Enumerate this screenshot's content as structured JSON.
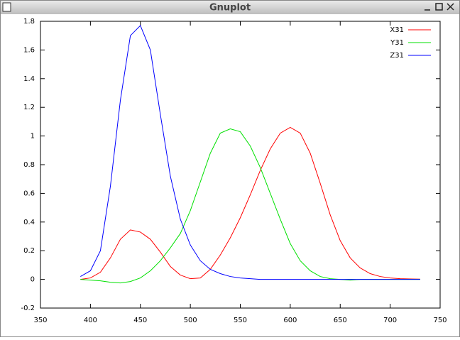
{
  "window": {
    "title": "Gnuplot"
  },
  "chart_data": {
    "type": "line",
    "x": [
      390,
      400,
      410,
      420,
      430,
      440,
      450,
      460,
      470,
      480,
      490,
      500,
      510,
      520,
      530,
      540,
      550,
      560,
      570,
      580,
      590,
      600,
      610,
      620,
      630,
      640,
      650,
      660,
      670,
      680,
      690,
      700,
      710,
      720,
      730
    ],
    "series": [
      {
        "name": "X31",
        "color": "#ff0000",
        "values": [
          0.0,
          0.01,
          0.05,
          0.15,
          0.28,
          0.345,
          0.33,
          0.28,
          0.19,
          0.09,
          0.03,
          0.005,
          0.01,
          0.07,
          0.17,
          0.29,
          0.43,
          0.59,
          0.76,
          0.91,
          1.02,
          1.06,
          1.02,
          0.88,
          0.67,
          0.45,
          0.27,
          0.15,
          0.08,
          0.04,
          0.02,
          0.01,
          0.005,
          0.003,
          0.002
        ]
      },
      {
        "name": "Y31",
        "color": "#00e000",
        "values": [
          0.0,
          -0.005,
          -0.01,
          -0.02,
          -0.025,
          -0.015,
          0.01,
          0.06,
          0.13,
          0.22,
          0.32,
          0.48,
          0.68,
          0.88,
          1.02,
          1.05,
          1.03,
          0.93,
          0.78,
          0.6,
          0.42,
          0.25,
          0.13,
          0.06,
          0.02,
          0.005,
          0.0,
          -0.005,
          0.0,
          0.0,
          0.0,
          0.0,
          0.0,
          0.0,
          0.0
        ]
      },
      {
        "name": "Z31",
        "color": "#0000ff",
        "values": [
          0.02,
          0.06,
          0.2,
          0.65,
          1.25,
          1.7,
          1.77,
          1.6,
          1.15,
          0.72,
          0.42,
          0.24,
          0.13,
          0.07,
          0.04,
          0.02,
          0.01,
          0.005,
          0.0,
          0.0,
          0.0,
          0.0,
          0.0,
          0.0,
          0.0,
          0.0,
          0.0,
          0.0,
          0.0,
          0.0,
          0.0,
          0.0,
          0.0,
          0.0,
          0.0
        ]
      }
    ],
    "xlim": [
      350,
      750
    ],
    "xticks": [
      350,
      400,
      450,
      500,
      550,
      600,
      650,
      700,
      750
    ],
    "ylim": [
      -0.2,
      1.8
    ],
    "yticks": [
      -0.2,
      0,
      0.2,
      0.4,
      0.6,
      0.8,
      1,
      1.2,
      1.4,
      1.6,
      1.8
    ],
    "legend": "top-right"
  }
}
